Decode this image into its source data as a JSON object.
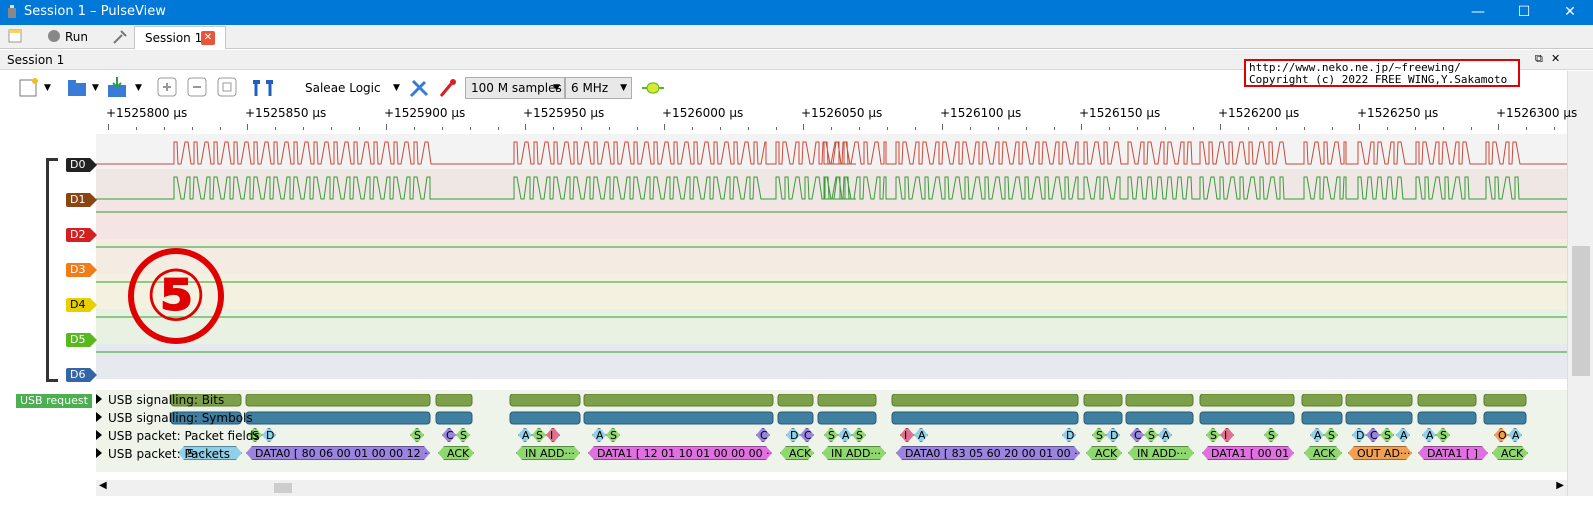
{
  "window": {
    "title": "Session 1 – PulseView"
  },
  "tabbar": {
    "run_label": "Run",
    "tab_label": "Session 1"
  },
  "session_header": {
    "label": "Session 1"
  },
  "toolbar": {
    "device": "Saleae Logic",
    "samples": "100 M samples",
    "rate": "6 MHz"
  },
  "overlay": {
    "copyright_line1": "http://www.neko.ne.jp/~freewing/",
    "copyright_line2": "Copyright (c) 2022 FREE WING,Y.Sakamoto",
    "marker": "⑤"
  },
  "ruler": {
    "ticks": [
      "+1525800 µs",
      "+1525850 µs",
      "+1525900 µs",
      "+1525950 µs",
      "+1526000 µs",
      "+1526050 µs",
      "+1526100 µs",
      "+1526150 µs",
      "+1526200 µs",
      "+1526250 µs",
      "+1526300 µs"
    ]
  },
  "channels": [
    {
      "name": "D0",
      "color": "#222222"
    },
    {
      "name": "D1",
      "color": "#8b4513"
    },
    {
      "name": "D2",
      "color": "#d42020"
    },
    {
      "name": "D3",
      "color": "#f07c1a"
    },
    {
      "name": "D4",
      "color": "#e8d000"
    },
    {
      "name": "D5",
      "color": "#58b820"
    },
    {
      "name": "D6",
      "color": "#3465a4"
    }
  ],
  "decoder": {
    "name": "USB request",
    "rows": [
      "USB signalling: Bits",
      "USB signalling: Symbols",
      "USB packet: Packet fields",
      "USB packet: Packets"
    ],
    "packets": [
      {
        "label": "S···",
        "color": "#8fd0e8"
      },
      {
        "label": "DATA0 [ 80 06 00 01 00 00 12 ···",
        "color": "#9a84e0"
      },
      {
        "label": "ACK",
        "color": "#8fd870"
      },
      {
        "label": "IN ADD···",
        "color": "#8fd870"
      },
      {
        "label": "DATA1 [ 12 01 10 01 00 00 00 ···",
        "color": "#e070e0"
      },
      {
        "label": "ACK",
        "color": "#8fd870"
      },
      {
        "label": "IN ADD···",
        "color": "#8fd870"
      },
      {
        "label": "DATA0 [ 83 05 60 20 00 01 00 ···",
        "color": "#9a84e0"
      },
      {
        "label": "ACK",
        "color": "#8fd870"
      },
      {
        "label": "IN ADD···",
        "color": "#8fd870"
      },
      {
        "label": "DATA1 [ 00 01 ]",
        "color": "#e070e0"
      },
      {
        "label": "ACK",
        "color": "#8fd870"
      },
      {
        "label": "OUT AD···",
        "color": "#f0a050"
      },
      {
        "label": "DATA1 [ ]",
        "color": "#e070e0"
      },
      {
        "label": "ACK",
        "color": "#8fd870"
      }
    ],
    "fields": [
      "S",
      "D",
      "C",
      "S",
      "A",
      "S",
      "I",
      "A",
      "S",
      "D",
      "C",
      "S",
      "A",
      "S",
      "I",
      "A",
      "S",
      "D",
      "C",
      "S",
      "A",
      "S",
      "I",
      "A",
      "S",
      "D",
      "C",
      "S",
      "A",
      "S",
      "O",
      "A",
      "S",
      "D",
      "C",
      "S",
      "A"
    ]
  }
}
